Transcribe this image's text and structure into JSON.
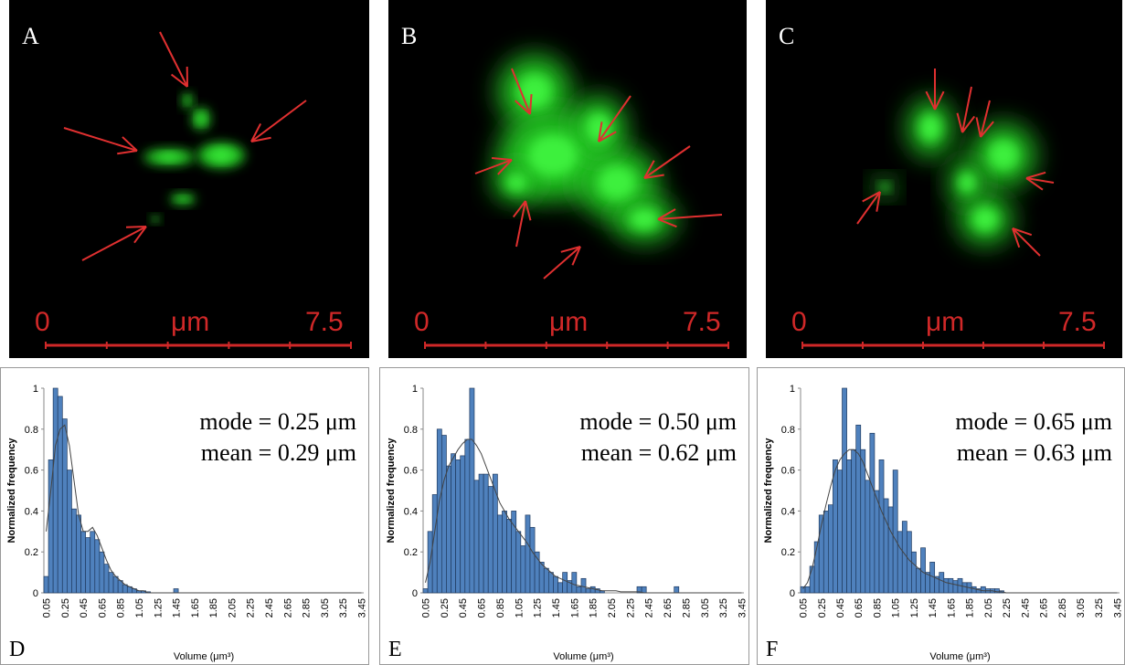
{
  "images": [
    {
      "label": "A",
      "scale": [
        "0",
        "μm",
        "7.5"
      ]
    },
    {
      "label": "B",
      "scale": [
        "0",
        "μm",
        "7.5"
      ]
    },
    {
      "label": "C",
      "scale": [
        "0",
        "μm",
        "7.5"
      ]
    }
  ],
  "chart_data": [
    {
      "type": "bar",
      "panel_label": "D",
      "annotations": [
        "mode = 0.25 μm",
        "mean = 0.29 μm"
      ],
      "x_label": "Volume (μm³)",
      "y_label": "Normalized frequency",
      "categories": [
        "0.05",
        null,
        null,
        null,
        "0.25",
        null,
        null,
        null,
        "0.45",
        null,
        null,
        null,
        "0.65",
        null,
        null,
        null,
        "0.85",
        null,
        null,
        null,
        "1.05",
        null,
        null,
        null,
        "1.25",
        null,
        null,
        null,
        "1.45",
        null,
        null,
        null,
        "1.65",
        null,
        null,
        null,
        "1.85",
        null,
        null,
        null,
        "2.05",
        null,
        null,
        null,
        "2.25",
        null,
        null,
        null,
        "2.45",
        null,
        null,
        null,
        "2.65",
        null,
        null,
        null,
        "2.85",
        null,
        null,
        null,
        "3.05",
        null,
        null,
        null,
        "3.25",
        null,
        null,
        null,
        "3.45"
      ],
      "values": [
        0.08,
        0.65,
        1.0,
        0.96,
        0.85,
        0.6,
        0.41,
        0.38,
        0.3,
        0.27,
        0.3,
        0.26,
        0.2,
        0.14,
        0.1,
        0.08,
        0.06,
        0.04,
        0.03,
        0.02,
        0.01,
        0.01,
        0.005,
        0,
        0,
        0,
        0,
        0,
        0.02,
        0,
        0,
        0,
        0,
        0,
        0,
        0,
        0,
        0,
        0,
        0,
        0,
        0,
        0,
        0,
        0,
        0,
        0,
        0,
        0,
        0,
        0,
        0,
        0,
        0,
        0,
        0,
        0,
        0,
        0,
        0,
        0,
        0,
        0,
        0,
        0,
        0,
        0,
        0,
        0
      ],
      "fit": [
        0.3,
        0.5,
        0.72,
        0.8,
        0.82,
        0.72,
        0.55,
        0.38,
        0.3,
        0.3,
        0.32,
        0.28,
        0.22,
        0.16,
        0.11,
        0.08,
        0.06,
        0.04,
        0.03,
        0.02,
        0.01,
        0.01,
        0,
        0,
        0,
        0,
        0,
        0,
        0,
        0,
        0,
        0,
        0,
        0,
        0,
        0,
        0,
        0,
        0,
        0,
        0,
        0,
        0,
        0,
        0,
        0,
        0,
        0,
        0,
        0,
        0,
        0,
        0,
        0,
        0,
        0,
        0,
        0,
        0,
        0,
        0,
        0,
        0,
        0,
        0,
        0,
        0,
        0,
        0
      ],
      "color": "#4f81bd",
      "fit_color": "#444444",
      "ylim": [
        0,
        1
      ],
      "yticks": [
        0,
        0.2,
        0.4,
        0.6,
        0.8,
        1
      ]
    },
    {
      "type": "bar",
      "panel_label": "E",
      "annotations": [
        "mode = 0.50 μm",
        "mean = 0.62 μm"
      ],
      "x_label": "Volume (μm³)",
      "y_label": "Normalized frequency",
      "categories": [
        "0.05",
        null,
        null,
        null,
        "0.25",
        null,
        null,
        null,
        "0.45",
        null,
        null,
        null,
        "0.65",
        null,
        null,
        null,
        "0.85",
        null,
        null,
        null,
        "1.05",
        null,
        null,
        null,
        "1.25",
        null,
        null,
        null,
        "1.45",
        null,
        null,
        null,
        "1.65",
        null,
        null,
        null,
        "1.85",
        null,
        null,
        null,
        "2.05",
        null,
        null,
        null,
        "2.25",
        null,
        null,
        null,
        "2.45",
        null,
        null,
        null,
        "2.65",
        null,
        null,
        null,
        "2.85",
        null,
        null,
        null,
        "3.05",
        null,
        null,
        null,
        "3.25",
        null,
        null,
        null,
        "3.45"
      ],
      "values": [
        0.02,
        0.3,
        0.48,
        0.8,
        0.77,
        0.62,
        0.68,
        0.65,
        0.67,
        0.75,
        1.0,
        0.55,
        0.58,
        0.58,
        0.52,
        0.58,
        0.38,
        0.4,
        0.36,
        0.4,
        0.3,
        0.23,
        0.38,
        0.32,
        0.2,
        0.15,
        0.12,
        0.1,
        0.08,
        0.05,
        0.1,
        0.06,
        0.1,
        0.03,
        0.07,
        0.02,
        0.03,
        0.02,
        0.01,
        0,
        0,
        0,
        0,
        0,
        0,
        0,
        0.03,
        0.03,
        0,
        0,
        0,
        0,
        0,
        0,
        0.03,
        0,
        0,
        0,
        0,
        0,
        0,
        0,
        0,
        0,
        0,
        0,
        0,
        0,
        0
      ],
      "fit": [
        0.05,
        0.15,
        0.3,
        0.45,
        0.55,
        0.62,
        0.66,
        0.7,
        0.73,
        0.75,
        0.75,
        0.72,
        0.68,
        0.62,
        0.56,
        0.5,
        0.44,
        0.4,
        0.36,
        0.33,
        0.3,
        0.27,
        0.24,
        0.2,
        0.17,
        0.14,
        0.12,
        0.1,
        0.08,
        0.07,
        0.06,
        0.05,
        0.04,
        0.035,
        0.03,
        0.025,
        0.02,
        0.015,
        0.01,
        0.01,
        0.01,
        0.01,
        0.005,
        0.005,
        0.005,
        0.005,
        0.005,
        0,
        0,
        0,
        0,
        0,
        0,
        0,
        0,
        0,
        0,
        0,
        0,
        0,
        0,
        0,
        0,
        0,
        0,
        0,
        0,
        0,
        0
      ],
      "color": "#4f81bd",
      "fit_color": "#444444",
      "ylim": [
        0,
        1
      ],
      "yticks": [
        0,
        0.2,
        0.4,
        0.6,
        0.8,
        1
      ]
    },
    {
      "type": "bar",
      "panel_label": "F",
      "annotations": [
        "mode = 0.65 μm",
        "mean = 0.63 μm"
      ],
      "x_label": "Volume (μm³)",
      "y_label": "Normalized frequency",
      "categories": [
        "0.05",
        null,
        null,
        null,
        "0.25",
        null,
        null,
        null,
        "0.45",
        null,
        null,
        null,
        "0.65",
        null,
        null,
        null,
        "0.85",
        null,
        null,
        null,
        "1.05",
        null,
        null,
        null,
        "1.25",
        null,
        null,
        null,
        "1.45",
        null,
        null,
        null,
        "1.65",
        null,
        null,
        null,
        "1.85",
        null,
        null,
        null,
        "2.05",
        null,
        null,
        null,
        "2.25",
        null,
        null,
        null,
        "2.45",
        null,
        null,
        null,
        "2.65",
        null,
        null,
        null,
        "2.85",
        null,
        null,
        null,
        "3.05",
        null,
        null,
        null,
        "3.25",
        null,
        null,
        null,
        "3.45"
      ],
      "values": [
        0.03,
        0.03,
        0.13,
        0.25,
        0.38,
        0.4,
        0.43,
        0.65,
        0.6,
        1.0,
        0.65,
        0.7,
        0.82,
        0.7,
        0.55,
        0.78,
        0.5,
        0.65,
        0.46,
        0.42,
        0.6,
        0.3,
        0.35,
        0.3,
        0.2,
        0.12,
        0.22,
        0.1,
        0.15,
        0.08,
        0.1,
        0.07,
        0.07,
        0.06,
        0.07,
        0.05,
        0.05,
        0.03,
        0.02,
        0.03,
        0.02,
        0.02,
        0.02,
        0.01,
        0,
        0,
        0,
        0,
        0,
        0,
        0,
        0,
        0,
        0,
        0,
        0,
        0,
        0,
        0,
        0,
        0,
        0,
        0,
        0,
        0,
        0,
        0,
        0,
        0
      ],
      "fit": [
        0.02,
        0.05,
        0.12,
        0.22,
        0.33,
        0.43,
        0.52,
        0.6,
        0.65,
        0.68,
        0.7,
        0.7,
        0.68,
        0.64,
        0.58,
        0.52,
        0.46,
        0.4,
        0.35,
        0.3,
        0.26,
        0.22,
        0.19,
        0.16,
        0.14,
        0.12,
        0.1,
        0.09,
        0.08,
        0.07,
        0.06,
        0.05,
        0.045,
        0.04,
        0.035,
        0.03,
        0.025,
        0.02,
        0.015,
        0.01,
        0.01,
        0.01,
        0.005,
        0.005,
        0,
        0,
        0,
        0,
        0,
        0,
        0,
        0,
        0,
        0,
        0,
        0,
        0,
        0,
        0,
        0,
        0,
        0,
        0,
        0,
        0,
        0,
        0,
        0,
        0
      ],
      "color": "#4f81bd",
      "fit_color": "#444444",
      "ylim": [
        0,
        1
      ],
      "yticks": [
        0,
        0.2,
        0.4,
        0.6,
        0.8,
        1
      ]
    }
  ]
}
